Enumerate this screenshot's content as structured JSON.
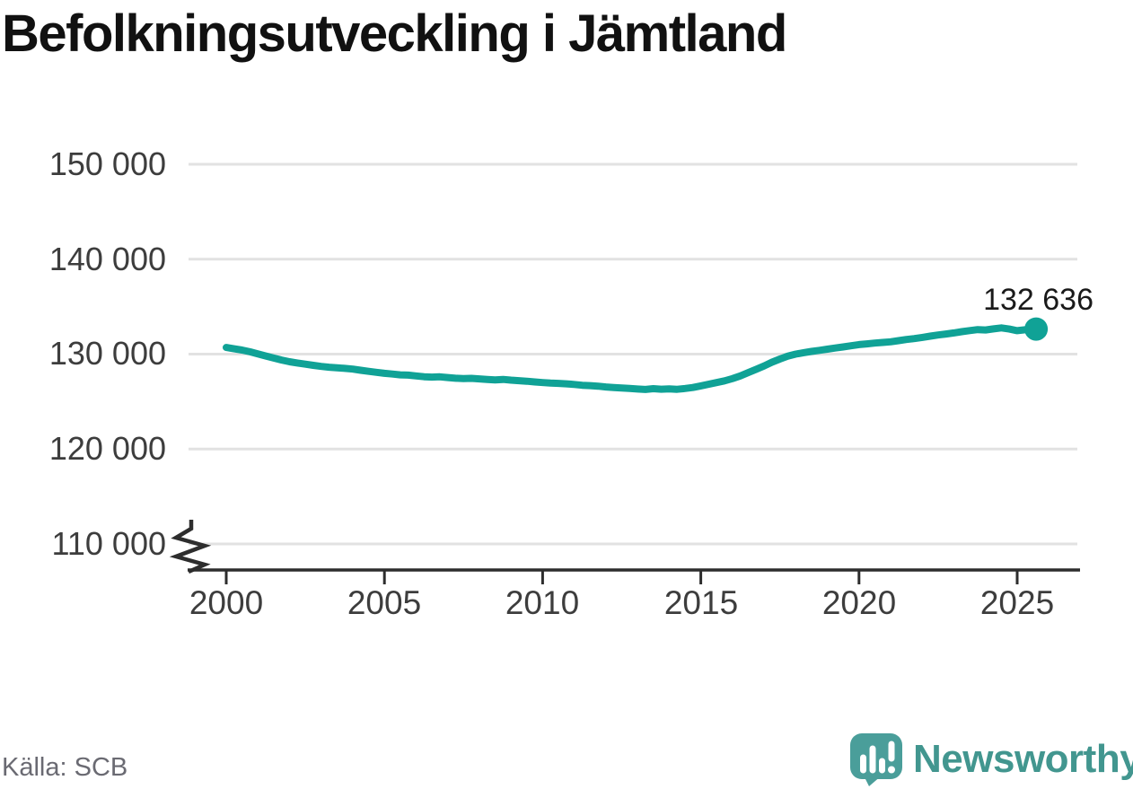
{
  "title": "Befolkningsutveckling i Jämtland",
  "source": "Källa: SCB",
  "brand": {
    "name": "Newsworthy"
  },
  "colors": {
    "line": "#10a296",
    "grid": "#e2e2e2",
    "axis": "#2d2d2d",
    "title_text": "#111111",
    "tick_text": "#3d3d3d",
    "annotation_text": "#1a1a1a",
    "source_text": "#6a6a72",
    "brand_text": "#42968f",
    "brand_icon": "#4a9e9a"
  },
  "chart_data": {
    "type": "line",
    "title": "Befolkningsutveckling i Jämtland",
    "source": "Källa: SCB",
    "x_tick_labels": [
      "2000",
      "2005",
      "2010",
      "2015",
      "2020",
      "2025"
    ],
    "x_tick_years": [
      2000,
      2005,
      2010,
      2015,
      2020,
      2025
    ],
    "y_tick_labels": [
      "150 000",
      "140 000",
      "130 000",
      "120 000",
      "110 000"
    ],
    "y_tick_values": [
      150000,
      140000,
      130000,
      120000,
      110000
    ],
    "ylim": [
      110000,
      150000
    ],
    "xlim": [
      2000,
      2025.6
    ],
    "y_axis_break": true,
    "grid": "horizontal-only",
    "legend": "none",
    "end_label": "132 636",
    "end_value": 132636,
    "series": [
      {
        "name": "Befolkning i Jämtland",
        "color": "#10a296",
        "points": [
          [
            2000.0,
            130700
          ],
          [
            2000.25,
            130560
          ],
          [
            2000.5,
            130430
          ],
          [
            2000.75,
            130250
          ],
          [
            2001.0,
            130030
          ],
          [
            2001.25,
            129800
          ],
          [
            2001.5,
            129580
          ],
          [
            2001.75,
            129380
          ],
          [
            2002.0,
            129200
          ],
          [
            2002.25,
            129060
          ],
          [
            2002.5,
            128940
          ],
          [
            2002.75,
            128820
          ],
          [
            2003.0,
            128700
          ],
          [
            2003.25,
            128620
          ],
          [
            2003.5,
            128560
          ],
          [
            2003.75,
            128500
          ],
          [
            2004.0,
            128420
          ],
          [
            2004.25,
            128300
          ],
          [
            2004.5,
            128180
          ],
          [
            2004.75,
            128080
          ],
          [
            2005.0,
            127980
          ],
          [
            2005.25,
            127900
          ],
          [
            2005.5,
            127820
          ],
          [
            2005.75,
            127790
          ],
          [
            2006.0,
            127700
          ],
          [
            2006.25,
            127620
          ],
          [
            2006.5,
            127580
          ],
          [
            2006.75,
            127610
          ],
          [
            2007.0,
            127530
          ],
          [
            2007.25,
            127460
          ],
          [
            2007.5,
            127420
          ],
          [
            2007.75,
            127450
          ],
          [
            2008.0,
            127390
          ],
          [
            2008.25,
            127330
          ],
          [
            2008.5,
            127290
          ],
          [
            2008.75,
            127330
          ],
          [
            2009.0,
            127260
          ],
          [
            2009.25,
            127200
          ],
          [
            2009.5,
            127140
          ],
          [
            2009.75,
            127070
          ],
          [
            2010.0,
            127000
          ],
          [
            2010.25,
            126950
          ],
          [
            2010.5,
            126920
          ],
          [
            2010.75,
            126870
          ],
          [
            2011.0,
            126800
          ],
          [
            2011.25,
            126720
          ],
          [
            2011.5,
            126680
          ],
          [
            2011.75,
            126620
          ],
          [
            2012.0,
            126540
          ],
          [
            2012.25,
            126480
          ],
          [
            2012.5,
            126430
          ],
          [
            2012.75,
            126380
          ],
          [
            2013.0,
            126320
          ],
          [
            2013.25,
            126270
          ],
          [
            2013.5,
            126360
          ],
          [
            2013.75,
            126300
          ],
          [
            2014.0,
            126340
          ],
          [
            2014.25,
            126290
          ],
          [
            2014.5,
            126380
          ],
          [
            2014.75,
            126480
          ],
          [
            2015.0,
            126650
          ],
          [
            2015.25,
            126820
          ],
          [
            2015.5,
            127000
          ],
          [
            2015.75,
            127180
          ],
          [
            2016.0,
            127420
          ],
          [
            2016.25,
            127700
          ],
          [
            2016.5,
            128050
          ],
          [
            2016.75,
            128400
          ],
          [
            2017.0,
            128750
          ],
          [
            2017.25,
            129150
          ],
          [
            2017.5,
            129480
          ],
          [
            2017.75,
            129780
          ],
          [
            2018.0,
            130000
          ],
          [
            2018.25,
            130150
          ],
          [
            2018.5,
            130280
          ],
          [
            2018.75,
            130400
          ],
          [
            2019.0,
            130520
          ],
          [
            2019.25,
            130640
          ],
          [
            2019.5,
            130760
          ],
          [
            2019.75,
            130880
          ],
          [
            2020.0,
            131000
          ],
          [
            2020.25,
            131080
          ],
          [
            2020.5,
            131160
          ],
          [
            2020.75,
            131230
          ],
          [
            2021.0,
            131300
          ],
          [
            2021.25,
            131420
          ],
          [
            2021.5,
            131540
          ],
          [
            2021.75,
            131640
          ],
          [
            2022.0,
            131760
          ],
          [
            2022.25,
            131890
          ],
          [
            2022.5,
            132010
          ],
          [
            2022.75,
            132120
          ],
          [
            2023.0,
            132230
          ],
          [
            2023.25,
            132360
          ],
          [
            2023.5,
            132480
          ],
          [
            2023.75,
            132580
          ],
          [
            2024.0,
            132540
          ],
          [
            2024.25,
            132660
          ],
          [
            2024.5,
            132760
          ],
          [
            2024.75,
            132640
          ],
          [
            2025.0,
            132470
          ],
          [
            2025.25,
            132560
          ],
          [
            2025.6,
            132636
          ]
        ]
      }
    ]
  }
}
